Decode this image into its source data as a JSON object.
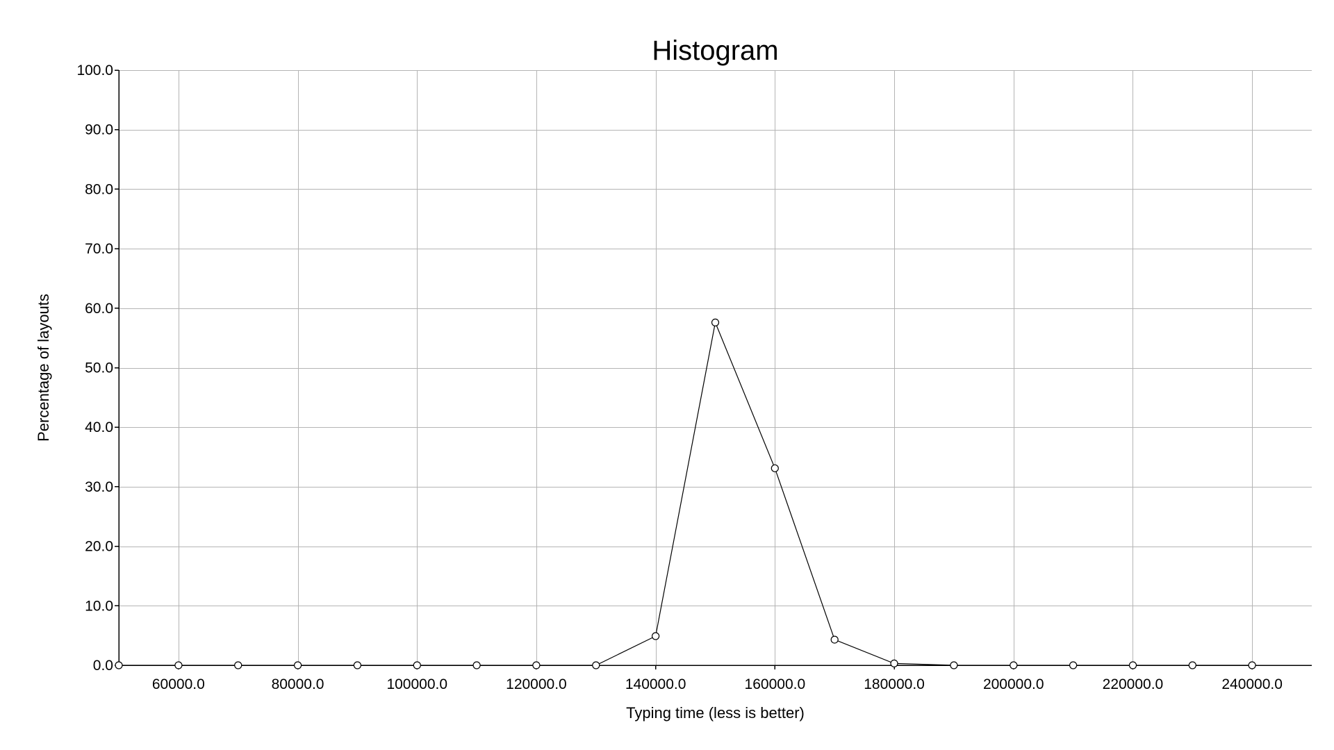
{
  "chart_data": {
    "type": "line",
    "title": "Histogram",
    "xlabel": "Typing time (less is better)",
    "ylabel": "Percentage of layouts",
    "xlim": [
      50000,
      250000
    ],
    "ylim": [
      0,
      100
    ],
    "x_ticks": [
      60000,
      80000,
      100000,
      120000,
      140000,
      160000,
      180000,
      200000,
      220000,
      240000
    ],
    "x_tick_labels": [
      "60000.0",
      "80000.0",
      "100000.0",
      "120000.0",
      "140000.0",
      "160000.0",
      "180000.0",
      "200000.0",
      "220000.0",
      "240000.0"
    ],
    "y_ticks": [
      0,
      10,
      20,
      30,
      40,
      50,
      60,
      70,
      80,
      90,
      100
    ],
    "y_tick_labels": [
      "0.0",
      "10.0",
      "20.0",
      "30.0",
      "40.0",
      "50.0",
      "60.0",
      "70.0",
      "80.0",
      "90.0",
      "100.0"
    ],
    "x": [
      50000,
      60000,
      70000,
      80000,
      90000,
      100000,
      110000,
      120000,
      130000,
      140000,
      150000,
      160000,
      170000,
      180000,
      190000,
      200000,
      210000,
      220000,
      230000,
      240000
    ],
    "series": [
      {
        "values": [
          0,
          0,
          0,
          0,
          0,
          0,
          0,
          0,
          0,
          4.9,
          57.6,
          33.1,
          4.3,
          0.3,
          0,
          0,
          0,
          0,
          0,
          0
        ]
      }
    ],
    "grid": true,
    "line_color": "#000000",
    "grid_color": "#b4b4b4",
    "marker": "open-circle"
  }
}
